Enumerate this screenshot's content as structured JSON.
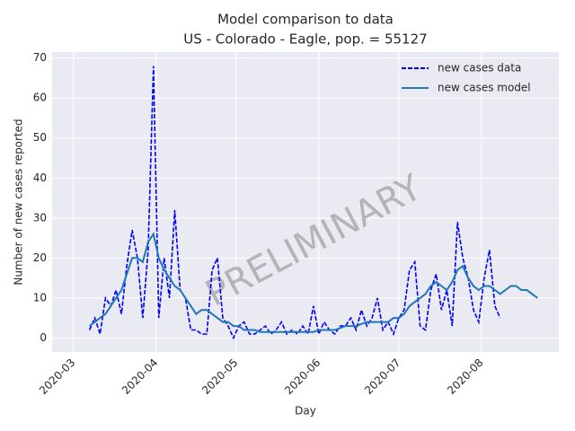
{
  "chart_data": {
    "type": "line",
    "title": "Model comparison to data",
    "subtitle": "US - Colorado - Eagle, pop. = 55127",
    "xlabel": "Day",
    "ylabel": "Number of new cases reported",
    "annotation": "PRELIMINARY",
    "xlim": [
      -8,
      182
    ],
    "ylim": [
      -3.5,
      71.5
    ],
    "xticks": [
      {
        "value": 0,
        "label": "2020-03"
      },
      {
        "value": 31,
        "label": "2020-04"
      },
      {
        "value": 61,
        "label": "2020-05"
      },
      {
        "value": 92,
        "label": "2020-06"
      },
      {
        "value": 122,
        "label": "2020-07"
      },
      {
        "value": 153,
        "label": "2020-08"
      }
    ],
    "yticks": [
      0,
      10,
      20,
      30,
      40,
      50,
      60,
      70
    ],
    "grid": true,
    "legend": "upper right",
    "series": [
      {
        "name": "new cases data",
        "color": "#0000ff",
        "linestyle": "dashed",
        "x": [
          6,
          8,
          10,
          12,
          14,
          16,
          18,
          20,
          22,
          24,
          26,
          28,
          30,
          32,
          34,
          36,
          38,
          40,
          42,
          44,
          46,
          48,
          50,
          52,
          54,
          56,
          58,
          60,
          62,
          64,
          66,
          68,
          70,
          72,
          74,
          76,
          78,
          80,
          82,
          84,
          86,
          88,
          90,
          92,
          94,
          96,
          98,
          100,
          102,
          104,
          106,
          108,
          110,
          112,
          114,
          116,
          118,
          120,
          122,
          124,
          126,
          128,
          130,
          132,
          134,
          136,
          138,
          140,
          142,
          144,
          146,
          148,
          150,
          152,
          154,
          156,
          158,
          160
        ],
        "values": [
          2,
          5,
          1,
          10,
          8,
          12,
          6,
          18,
          27,
          20,
          5,
          22,
          68,
          5,
          20,
          10,
          32,
          12,
          10,
          2,
          2,
          1,
          1,
          17,
          20,
          5,
          3,
          0,
          3,
          4,
          1,
          1,
          2,
          3,
          1,
          2,
          4,
          1,
          2,
          1,
          3,
          1,
          8,
          1,
          4,
          2,
          1,
          3,
          3,
          5,
          2,
          7,
          3,
          5,
          10,
          2,
          4,
          1,
          5,
          7,
          17,
          19,
          3,
          2,
          12,
          16,
          7,
          12,
          3,
          29,
          20,
          15,
          7,
          4,
          15,
          22,
          8,
          5
        ]
      },
      {
        "name": "new cases model",
        "color": "#1f77b4",
        "linestyle": "solid",
        "x": [
          6,
          8,
          10,
          12,
          14,
          16,
          18,
          20,
          22,
          24,
          26,
          28,
          30,
          32,
          34,
          36,
          38,
          40,
          42,
          44,
          46,
          48,
          50,
          52,
          54,
          56,
          58,
          60,
          62,
          64,
          66,
          68,
          70,
          72,
          74,
          76,
          78,
          80,
          82,
          84,
          86,
          88,
          90,
          92,
          94,
          96,
          98,
          100,
          102,
          104,
          106,
          108,
          110,
          112,
          114,
          116,
          118,
          120,
          122,
          124,
          126,
          128,
          130,
          132,
          134,
          136,
          138,
          140,
          142,
          144,
          146,
          148,
          150,
          152,
          154,
          156,
          158,
          160,
          162,
          164,
          166,
          168,
          170,
          172,
          174
        ],
        "values": [
          3,
          4,
          5,
          6,
          8,
          10,
          12,
          16,
          20,
          20,
          19,
          24,
          26,
          20,
          17,
          15,
          13,
          12,
          10,
          8,
          6,
          7,
          7,
          6,
          5,
          4,
          4,
          3,
          3,
          2,
          2,
          2,
          1.5,
          1.5,
          1.5,
          1.5,
          1.5,
          1.5,
          1.5,
          1.5,
          1.5,
          1.5,
          1.5,
          2,
          2,
          2,
          2,
          2.5,
          3,
          3,
          3,
          3.5,
          4,
          4,
          4,
          4,
          4,
          5,
          5,
          6,
          8,
          9,
          10,
          11,
          13,
          14,
          13,
          12,
          14,
          17,
          18,
          15,
          13,
          12,
          13,
          13,
          12,
          11,
          12,
          13,
          13,
          12,
          12,
          11,
          10
        ]
      }
    ]
  }
}
